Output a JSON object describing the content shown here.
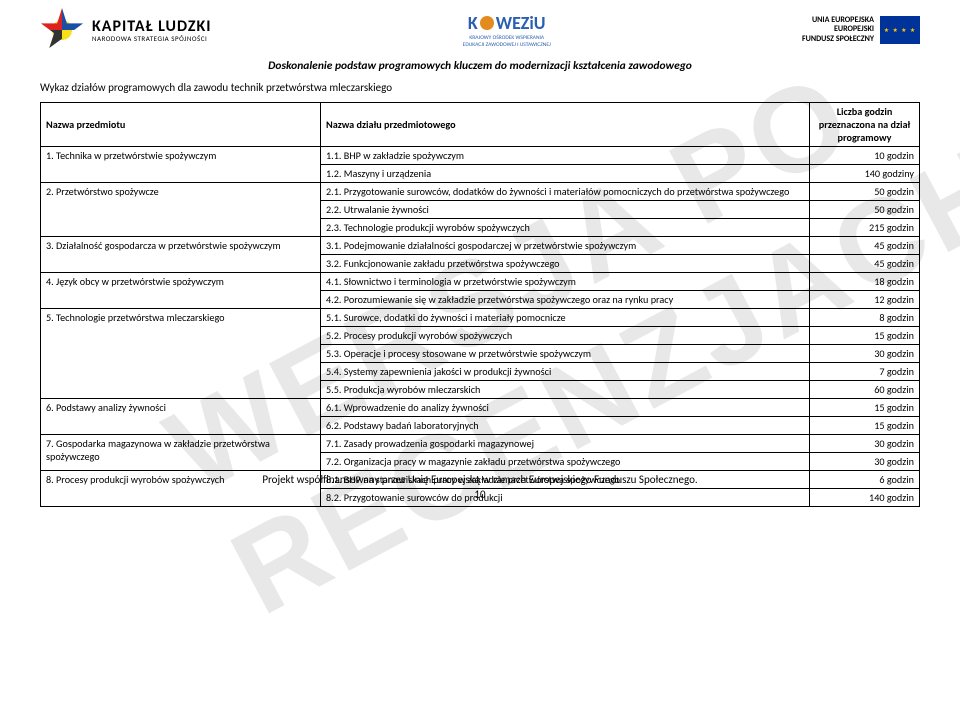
{
  "header": {
    "left": {
      "title": "KAPITAŁ LUDZKI",
      "subtitle": "NARODOWA STRATEGIA SPÓJNOŚCI"
    },
    "center": {
      "brand_a": "K",
      "brand_b": "WEZiU",
      "sub1": "KRAJOWY OŚRODEK WSPIERANIA",
      "sub2": "EDUKACJI ZAWODOWEJ I USTAWICZNEJ"
    },
    "right": {
      "line1": "UNIA EUROPEJSKA",
      "line2": "EUROPEJSKI",
      "line3": "FUNDUSZ SPOŁECZNY"
    },
    "band": "Doskonalenie podstaw programowych kluczem do modernizacji kształcenia zawodowego"
  },
  "watermark": "WERSJA PO RECENZJACH",
  "list_title": "Wykaz działów programowych dla zawodu technik przetwórstwa mleczarskiego",
  "columns": {
    "subject": "Nazwa przedmiotu",
    "section": "Nazwa działu przedmiotowego",
    "hours": "Liczba godzin przeznaczona na dział programowy"
  },
  "subjects": [
    {
      "name": "1.    Technika w przetwórstwie spożywczym",
      "rows": [
        {
          "section": "1.1. BHP w zakładzie spożywczym",
          "hours": "10 godzin"
        },
        {
          "section": "1.2. Maszyny i urządzenia",
          "hours": "140 godziny"
        }
      ]
    },
    {
      "name": "2.    Przetwórstwo spożywcze",
      "rows": [
        {
          "section": "2.1. Przygotowanie surowców, dodatków do żywności  i materiałów pomocniczych do przetwórstwa spożywczego",
          "hours": "50 godzin"
        },
        {
          "section": "2.2. Utrwalanie żywności",
          "hours": "50 godzin"
        },
        {
          "section": "2.3. Technologie produkcji wyrobów spożywczych",
          "hours": "215 godzin"
        }
      ]
    },
    {
      "name": "3.    Działalność gospodarcza w przetwórstwie spożywczym",
      "rows": [
        {
          "section": "3.1. Podejmowanie działalności gospodarczej  w przetwórstwie spożywczym",
          "hours": "45 godzin"
        },
        {
          "section": "3.2. Funkcjonowanie zakładu przetwórstwa spożywczego",
          "hours": "45 godzin"
        }
      ]
    },
    {
      "name": "4.    Język obcy w przetwórstwie spożywczym",
      "rows": [
        {
          "section": "4.1. Słownictwo i terminologia w przetwórstwie spożywczym",
          "hours": "18 godzin"
        },
        {
          "section": "4.2. Porozumiewanie się w zakładzie przetwórstwa spożywczego  oraz na rynku pracy",
          "hours": "12 godzin"
        }
      ]
    },
    {
      "name": "5.    Technologie przetwórstwa mleczarskiego",
      "rows": [
        {
          "section": "5.1. Surowce, dodatki do żywności i materiały pomocnicze",
          "hours": "8 godzin"
        },
        {
          "section": "5.2. Procesy produkcji wyrobów spożywczych",
          "hours": "15 godzin"
        },
        {
          "section": "5.3. Operacje i procesy stosowane w przetwórstwie spożywczym",
          "hours": "30 godzin"
        },
        {
          "section": "5.4.  Systemy zapewnienia jakości w produkcji żywności",
          "hours": "7 godzin"
        },
        {
          "section": "5.5.  Produkcja wyrobów mleczarskich",
          "hours": "60 godzin"
        }
      ]
    },
    {
      "name": "6.    Podstawy analizy żywności",
      "rows": [
        {
          "section": "6.1. Wprowadzenie do analizy żywności",
          "hours": "15 godzin"
        },
        {
          "section": "6.2. Podstawy badań laboratoryjnych",
          "hours": "15 godzin"
        }
      ]
    },
    {
      "name": "7.    Gospodarka magazynowa w zakładzie przetwórstwa spożywczego",
      "rows": [
        {
          "section": "7.1. Zasady prowadzenia gospodarki magazynowej",
          "hours": "30 godzin"
        },
        {
          "section": "7.2. Organizacja pracy w magazynie zakładu przetwórstwa spożywczego",
          "hours": "30 godzin"
        }
      ]
    },
    {
      "name": "8.    Procesy produkcji wyrobów spożywczych",
      "rows": [
        {
          "section": "8.1. BHP na stanowiskach pracy w zakładzie przetwórstwa spożywczego",
          "hours": "6 godzin"
        },
        {
          "section": "8.2. Przygotowanie surowców do produkcji",
          "hours": "140 godzin"
        }
      ]
    }
  ],
  "footer": {
    "line": "Projekt współfinansowany przez Unię Europejską w ramach Europejskiego Funduszu Społecznego.",
    "page": "10"
  }
}
